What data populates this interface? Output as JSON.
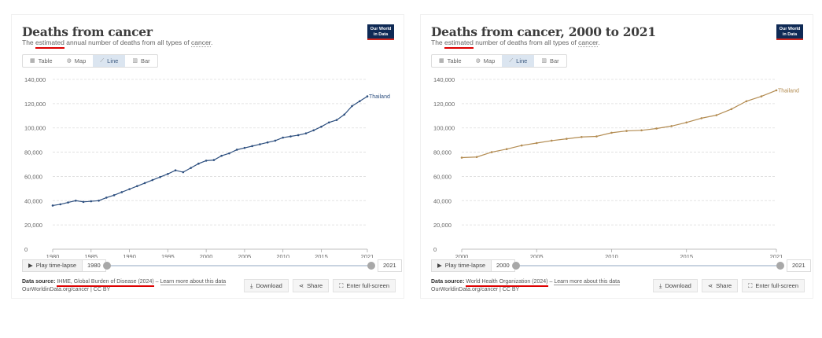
{
  "panels": [
    {
      "title": "Deaths from cancer",
      "subtitle": {
        "prefix": "The ",
        "estimated": "estimated",
        "middle": " annual number of deaths from all types of ",
        "cancer": "cancer",
        "suffix": "."
      },
      "logo": {
        "line1": "Our World",
        "line2": "in Data"
      },
      "tabs": [
        "Table",
        "Map",
        "Line",
        "Bar"
      ],
      "active_tab": "Line",
      "play_label": "Play time-lapse",
      "start_year": "1980",
      "end_year": "2021",
      "footer": {
        "source_label": "Data source:",
        "source": "IHME, Global Burden of Disease (2024)",
        "sep": " – ",
        "learn_more": "Learn more about this data",
        "credit": "OurWorldinData.org/cancer | CC BY"
      },
      "actions": [
        "Download",
        "Share",
        "Enter full-screen"
      ],
      "line_color": "#2d4f7f",
      "chart_data": {
        "type": "line",
        "title": "Deaths from cancer",
        "x": [
          1980,
          1981,
          1982,
          1983,
          1984,
          1985,
          1986,
          1987,
          1988,
          1989,
          1990,
          1991,
          1992,
          1993,
          1994,
          1995,
          1996,
          1997,
          1998,
          1999,
          2000,
          2001,
          2002,
          2003,
          2004,
          2005,
          2006,
          2007,
          2008,
          2009,
          2010,
          2011,
          2012,
          2013,
          2014,
          2015,
          2016,
          2017,
          2018,
          2019,
          2020,
          2021
        ],
        "series": [
          {
            "name": "Thailand",
            "values": [
              36000,
              37000,
              38500,
              40000,
              39000,
              39500,
              40000,
              42500,
              44500,
              47000,
              49500,
              52000,
              54500,
              57000,
              59500,
              62000,
              65000,
              63500,
              67000,
              70500,
              73000,
              73500,
              77000,
              79000,
              82000,
              83500,
              85000,
              86500,
              88000,
              89500,
              92000,
              93000,
              94000,
              95500,
              98000,
              101000,
              104500,
              106500,
              111000,
              118000,
              122000,
              126000
            ]
          }
        ],
        "xticks": [
          1980,
          1985,
          1990,
          1995,
          2000,
          2005,
          2010,
          2015,
          2021
        ],
        "yticks": [
          0,
          20000,
          40000,
          60000,
          80000,
          100000,
          120000,
          140000
        ],
        "ytick_labels": [
          "0",
          "20,000",
          "40,000",
          "60,000",
          "80,000",
          "100,000",
          "120,000",
          "140,000"
        ],
        "xlim": [
          1980,
          2021
        ],
        "ylim": [
          0,
          140000
        ],
        "grid": "horizontal dashed",
        "markers": true
      }
    },
    {
      "title": "Deaths from cancer, 2000 to 2021",
      "subtitle": {
        "prefix": "The ",
        "estimated": "estimated",
        "middle": " number of deaths from all types of ",
        "cancer": "cancer",
        "suffix": "."
      },
      "logo": {
        "line1": "Our World",
        "line2": "in Data"
      },
      "tabs": [
        "Table",
        "Map",
        "Line",
        "Bar"
      ],
      "active_tab": "Line",
      "play_label": "Play time-lapse",
      "start_year": "2000",
      "end_year": "2021",
      "footer": {
        "source_label": "Data source:",
        "source": "World Health Organization (2024)",
        "sep": " – ",
        "learn_more": "Learn more about this data",
        "credit": "OurWorldinData.org/cancer | CC BY"
      },
      "actions": [
        "Download",
        "Share",
        "Enter full-screen"
      ],
      "line_color": "#b38c52",
      "chart_data": {
        "type": "line",
        "title": "Deaths from cancer, 2000 to 2021",
        "x": [
          2000,
          2001,
          2002,
          2003,
          2004,
          2005,
          2006,
          2007,
          2008,
          2009,
          2010,
          2011,
          2012,
          2013,
          2014,
          2015,
          2016,
          2017,
          2018,
          2019,
          2020,
          2021
        ],
        "series": [
          {
            "name": "Thailand",
            "values": [
              75500,
              76000,
              80000,
              82500,
              85500,
              87500,
              89500,
              91000,
              92500,
              93000,
              96000,
              97500,
              98000,
              99500,
              101500,
              104500,
              108000,
              110500,
              115500,
              122000,
              126000,
              131000
            ]
          }
        ],
        "xticks": [
          2000,
          2005,
          2010,
          2015,
          2021
        ],
        "yticks": [
          0,
          20000,
          40000,
          60000,
          80000,
          100000,
          120000,
          140000
        ],
        "ytick_labels": [
          "0",
          "20,000",
          "40,000",
          "60,000",
          "80,000",
          "100,000",
          "120,000",
          "140,000"
        ],
        "xlim": [
          2000,
          2021
        ],
        "ylim": [
          0,
          140000
        ],
        "grid": "horizontal dashed",
        "markers": true
      }
    }
  ]
}
